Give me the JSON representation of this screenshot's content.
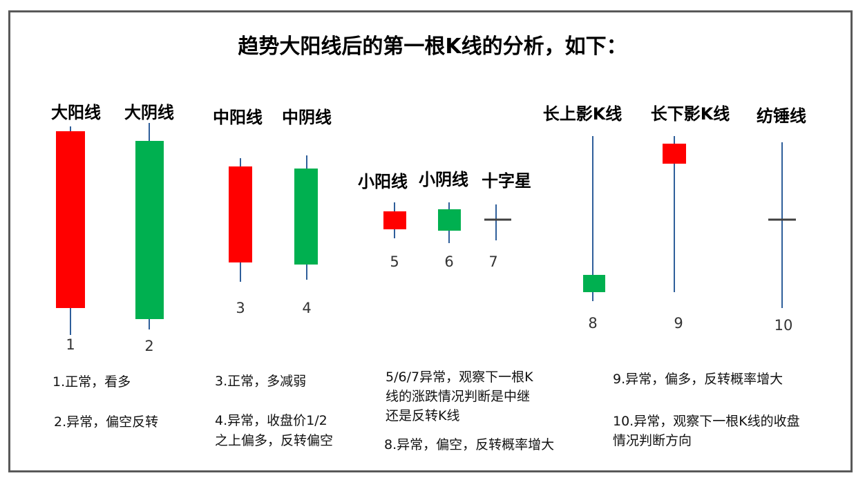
{
  "title": "趋势大阳线后的第一根K线的分析，如下：",
  "colors": {
    "up": "#ff0000",
    "down": "#00b050",
    "wick": "#2e5e9a",
    "cross": "#404040",
    "frame": "#595959"
  },
  "labels": {
    "big_yang": "大阳线",
    "big_yin": "大阴线",
    "mid_yang": "中阳线",
    "mid_yin": "中阴线",
    "small_yang": "小阳线",
    "small_yin": "小阴线",
    "doji": "十字星",
    "long_upper": "长上影K线",
    "long_lower": "长下影K线",
    "spinning_top": "纺锤线"
  },
  "numbers": [
    "1",
    "2",
    "3",
    "4",
    "5",
    "6",
    "7",
    "8",
    "9",
    "10"
  ],
  "notes": {
    "n1": "1.正常，看多",
    "n2": "2.异常，偏空反转",
    "n3": "3.正常，多减弱",
    "n4_line1": "4.异常，收盘价1/2",
    "n4_line2": "之上偏多，反转偏空",
    "n567_line1": "5/6/7异常，观察下一根K",
    "n567_line2": "线的涨跌情况判断是中继",
    "n567_line3": "还是反转K线",
    "n8": "8.异常，偏空，反转概率增大",
    "n9": "9.异常，偏多，反转概率增大",
    "n10_line1": "10.异常，观察下一根K线的收盘",
    "n10_line2": "情况判断方向"
  }
}
